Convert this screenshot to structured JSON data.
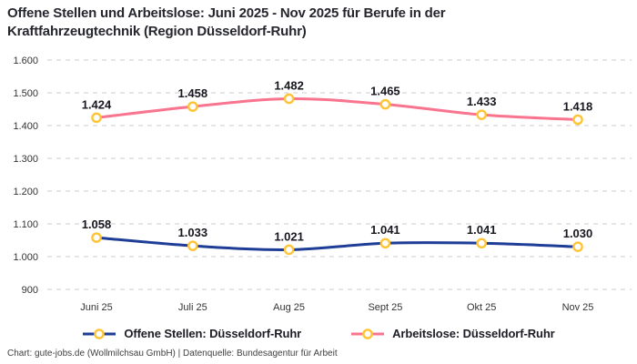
{
  "title": "Offene Stellen und Arbeitslose: Juni 2025 - Nov 2025 für Berufe in der\nKraftfahrzeugtechnik (Region Düsseldorf-Ruhr)",
  "footer": "Chart: gute-jobs.de (Wollmilchsau GmbH) | Datenquelle: Bundesagentur für Arbeit",
  "chart_data": {
    "type": "line",
    "title": "Offene Stellen und Arbeitslose: Juni 2025 - Nov 2025 für Berufe in der Kraftfahrzeugtechnik (Region Düsseldorf-Ruhr)",
    "categories": [
      "Juni 25",
      "Juli 25",
      "Aug 25",
      "Sept 25",
      "Okt 25",
      "Nov 25"
    ],
    "series": [
      {
        "name": "Offene Stellen: Düsseldorf-Ruhr",
        "color": "#1e3d96",
        "values": [
          1058,
          1033,
          1021,
          1041,
          1041,
          1030
        ],
        "labels": [
          "1.058",
          "1.033",
          "1.021",
          "1.041",
          "1.041",
          "1.030"
        ]
      },
      {
        "name": "Arbeitslose: Düsseldorf-Ruhr",
        "color": "#f9748e",
        "values": [
          1424,
          1458,
          1482,
          1465,
          1433,
          1418
        ],
        "labels": [
          "1.424",
          "1.458",
          "1.482",
          "1.465",
          "1.433",
          "1.418"
        ]
      }
    ],
    "ylim": [
      900,
      1600
    ],
    "yticks": [
      900,
      1000,
      1100,
      1200,
      1300,
      1400,
      1500,
      1600
    ],
    "ytick_labels": [
      "900",
      "1.000",
      "1.100",
      "1.200",
      "1.300",
      "1.400",
      "1.500",
      "1.600"
    ],
    "xlabel": "",
    "ylabel": "",
    "grid": "horizontal-dashed",
    "legend_position": "bottom",
    "marker": {
      "shape": "circle",
      "fill": "#ffffff",
      "stroke": "#ffc435"
    },
    "style": {
      "grid_color": "#cccccc",
      "axis_text_color": "#333333",
      "data_label_color": "#17171f"
    }
  }
}
